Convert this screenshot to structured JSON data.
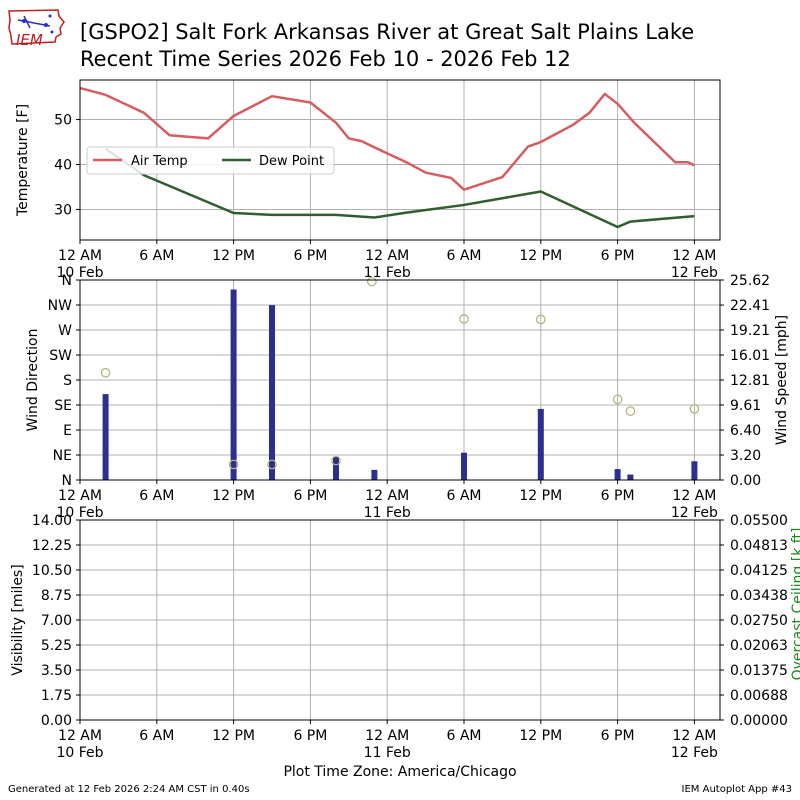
{
  "header": {
    "title_line1": "[GSPO2] Salt Fork Arkansas River at Great Salt Plains Lake",
    "title_line2": "Recent Time Series 2026 Feb 10 - 2026 Feb 12",
    "logo_text": "IEM"
  },
  "footer": {
    "left": "Generated at 12 Feb 2026 2:24 AM CST in 0.40s",
    "right": "IEM Autoplot App #43"
  },
  "colors": {
    "air_temp": "#d65d5f",
    "dew_point": "#2f5e2f",
    "wind_bar": "#2e2e8f",
    "wind_dir_marker": "#b5b57a",
    "ceiling_label": "#1b8a1b",
    "grid": "#b0b0b0"
  },
  "chart_data": [
    {
      "type": "line",
      "title": "",
      "xlabel": "",
      "ylabel": "Temperature [F]",
      "xlim": [
        0,
        50
      ],
      "ylim": [
        23.2,
        58.8
      ],
      "yticks": [
        30,
        40,
        50
      ],
      "x_unit": "hours since 12 AM 10 Feb",
      "x_ticks": [
        0,
        6,
        12,
        18,
        24,
        30,
        36,
        42,
        48
      ],
      "x_tick_labels": [
        "12 AM",
        "6 AM",
        "12 PM",
        "6 PM",
        "12 AM",
        "6 AM",
        "12 PM",
        "6 PM",
        "12 AM"
      ],
      "x_tick_sublabels": [
        "10 Feb",
        "",
        "",
        "",
        "11 Feb",
        "",
        "",
        "",
        "12 Feb"
      ],
      "legend": {
        "position": "center-left",
        "entries": [
          "Air Temp",
          "Dew Point"
        ]
      },
      "series": [
        {
          "name": "Air Temp",
          "x": [
            0,
            2,
            5,
            7,
            10,
            12,
            15,
            18,
            20,
            21,
            22,
            23,
            25.5,
            27,
            29,
            30,
            33,
            35,
            36,
            38.5,
            39.8,
            41,
            42,
            43.3,
            46.5,
            47.5,
            48
          ],
          "y": [
            57,
            55.5,
            51.5,
            46.5,
            45.8,
            50.8,
            55.2,
            53.8,
            49.3,
            45.8,
            45.2,
            43.8,
            40.5,
            38.2,
            37,
            34.4,
            37.2,
            44,
            45,
            48.8,
            51.5,
            55.7,
            53.5,
            49.3,
            40.5,
            40.5,
            39.8
          ]
        },
        {
          "name": "Dew Point",
          "x": [
            2,
            5,
            12,
            15,
            20,
            23,
            25.5,
            30,
            36,
            42,
            43,
            48
          ],
          "y": [
            43.5,
            37.6,
            29.2,
            28.8,
            28.8,
            28.2,
            29.3,
            31,
            34,
            26.1,
            27.3,
            28.5
          ]
        }
      ]
    },
    {
      "type": "bar",
      "title": "",
      "xlabel": "",
      "ylabel": "Wind Direction",
      "ylabel_right": "Wind Speed [mph]",
      "x_unit": "hours since 12 AM 10 Feb",
      "xlim": [
        0,
        50
      ],
      "y_dir_range": [
        0,
        360
      ],
      "y_dir_ticks": [
        0,
        45,
        90,
        135,
        180,
        225,
        270,
        315,
        360
      ],
      "y_dir_tick_labels": [
        "N",
        "NE",
        "E",
        "SE",
        "S",
        "SW",
        "W",
        "NW",
        "N"
      ],
      "y_speed_range": [
        0,
        25.62
      ],
      "y_speed_ticks": [
        0,
        3.2,
        6.4,
        9.61,
        12.81,
        16.01,
        19.21,
        22.41,
        25.62
      ],
      "y_speed_tick_labels": [
        "0.00",
        "3.20",
        "6.40",
        "9.61",
        "12.81",
        "16.01",
        "19.21",
        "22.41",
        "25.62"
      ],
      "x_ticks": [
        0,
        6,
        12,
        18,
        24,
        30,
        36,
        42,
        48
      ],
      "x_tick_labels": [
        "12 AM",
        "6 AM",
        "12 PM",
        "6 PM",
        "12 AM",
        "6 AM",
        "12 PM",
        "6 PM",
        "12 AM"
      ],
      "x_tick_sublabels": [
        "10 Feb",
        "",
        "",
        "",
        "11 Feb",
        "",
        "",
        "",
        "12 Feb"
      ],
      "series": [
        {
          "name": "Wind Speed",
          "x": [
            2,
            12,
            15,
            20,
            23,
            30,
            36,
            42,
            43,
            48
          ],
          "values": [
            11.0,
            24.4,
            22.4,
            3.0,
            1.3,
            3.5,
            9.1,
            1.4,
            0.7,
            2.4
          ]
        },
        {
          "name": "Wind Direction",
          "x": [
            2,
            12,
            15,
            20,
            22.8,
            30,
            36,
            42,
            43,
            48
          ],
          "values": [
            193,
            28,
            28,
            35,
            357,
            290,
            289,
            145,
            124,
            128
          ]
        }
      ]
    },
    {
      "type": "line",
      "title": "",
      "xlabel": "Plot Time Zone: America/Chicago",
      "ylabel": "Visibility [miles]",
      "ylabel_right": "Overcast Ceiling [k ft]",
      "x_unit": "hours since 12 AM 10 Feb",
      "xlim": [
        0,
        50
      ],
      "ylim": [
        0,
        14
      ],
      "yticks": [
        0,
        1.75,
        3.5,
        5.25,
        7,
        8.75,
        10.5,
        12.25,
        14
      ],
      "ytick_labels": [
        "0.00",
        "1.75",
        "3.50",
        "5.25",
        "7.00",
        "8.75",
        "10.50",
        "12.25",
        "14.00"
      ],
      "ylim_right": [
        0,
        0.055
      ],
      "yticks_right_labels": [
        "0.00000",
        "0.00688",
        "0.01375",
        "0.02063",
        "0.02750",
        "0.03438",
        "0.04125",
        "0.04813",
        "0.05500"
      ],
      "x_ticks": [
        0,
        6,
        12,
        18,
        24,
        30,
        36,
        42,
        48
      ],
      "x_tick_labels": [
        "12 AM",
        "6 AM",
        "12 PM",
        "6 PM",
        "12 AM",
        "6 AM",
        "12 PM",
        "6 PM",
        "12 AM"
      ],
      "x_tick_sublabels": [
        "10 Feb",
        "",
        "",
        "",
        "11 Feb",
        "",
        "",
        "",
        "12 Feb"
      ],
      "series": []
    }
  ]
}
